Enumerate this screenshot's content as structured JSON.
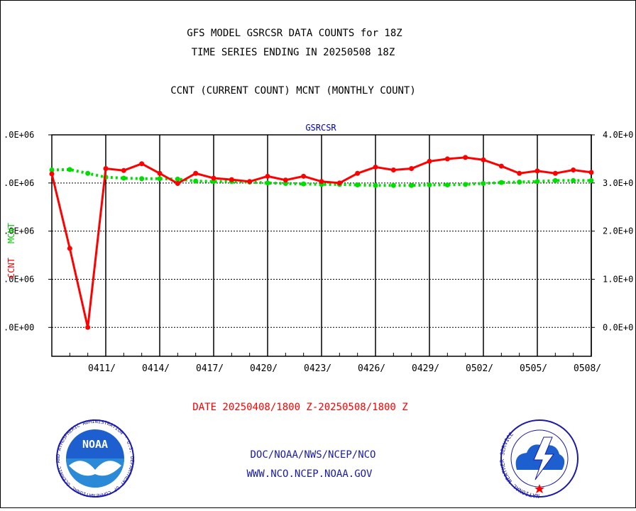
{
  "header": {
    "title_line1": "GFS MODEL GSRCSR DATA COUNTS for 18Z",
    "title_line2": "TIME SERIES ENDING IN 20250508 18Z",
    "subtitle": "CCNT (CURRENT COUNT) MCNT (MONTHLY COUNT)"
  },
  "footer": {
    "date_range": "DATE 20250408/1800 Z-20250508/1800 Z",
    "line1": "DOC/NOAA/NWS/NCEP/NCO",
    "line2": "WWW.NCO.NCEP.NOAA.GOV",
    "noaa_text": "NOAA",
    "noaa_ring_text": "NATIONAL OCEANIC AND ATMOSPHERIC ADMINISTRATION · U.S. DEPARTMENT OF COMMERCE ·",
    "nws_ring_text": "NATIONAL WEATHER SERVICE"
  },
  "colors": {
    "ccnt": "#ff0000",
    "mcnt": "#00dd00",
    "title": "#000000",
    "footer_blue": "#1a1aaa",
    "plot_label": "#0000cc"
  },
  "chart_data": {
    "type": "line",
    "plot_label": "GSRCSR",
    "grid": true,
    "x": [
      "0408",
      "0409",
      "0410",
      "0411",
      "0412",
      "0413",
      "0414",
      "0415",
      "0416",
      "0417",
      "0418",
      "0419",
      "0420",
      "0421",
      "0422",
      "0423",
      "0424",
      "0425",
      "0426",
      "0427",
      "0428",
      "0429",
      "0430",
      "0501",
      "0502",
      "0503",
      "0504",
      "0505",
      "0506",
      "0507",
      "0508"
    ],
    "x_tick_labels": [
      "0411/",
      "0414/",
      "0417/",
      "0420/",
      "0423/",
      "0426/",
      "0429/",
      "0502/",
      "0505/",
      "0508/"
    ],
    "left_ticks": [
      ".0E+06",
      ".0E+06",
      ".0E+06",
      ".0E+06",
      ".0E+00"
    ],
    "right_ticks": [
      "4.0E+0",
      "3.0E+0",
      "2.0E+0",
      "1.0E+0",
      "0.0E+0"
    ],
    "y_ticks": [
      4,
      3,
      2,
      1,
      0
    ],
    "ylim": [
      -0.6,
      4.0
    ],
    "ylabel_ccnt": "CCNT",
    "ylabel_mcnt": "MCNT",
    "series": [
      {
        "key": "ccnt",
        "values": [
          3.19,
          1.64,
          0,
          3.3,
          3.26,
          3.4,
          3.2,
          2.99,
          3.2,
          3.1,
          3.07,
          3.03,
          3.14,
          3.06,
          3.14,
          3.03,
          3.0,
          3.2,
          3.33,
          3.27,
          3.3,
          3.45,
          3.5,
          3.53,
          3.48,
          3.35,
          3.2,
          3.25,
          3.2,
          3.27,
          3.22
        ]
      },
      {
        "key": "mcnt",
        "values": [
          3.27,
          3.28,
          3.2,
          3.12,
          3.1,
          3.09,
          3.09,
          3.08,
          3.04,
          3.03,
          3.03,
          3.02,
          3.0,
          2.99,
          2.98,
          2.97,
          2.97,
          2.96,
          2.95,
          2.95,
          2.95,
          2.96,
          2.96,
          2.97,
          2.99,
          3.01,
          3.02,
          3.03,
          3.05,
          3.05,
          3.05
        ]
      }
    ]
  }
}
